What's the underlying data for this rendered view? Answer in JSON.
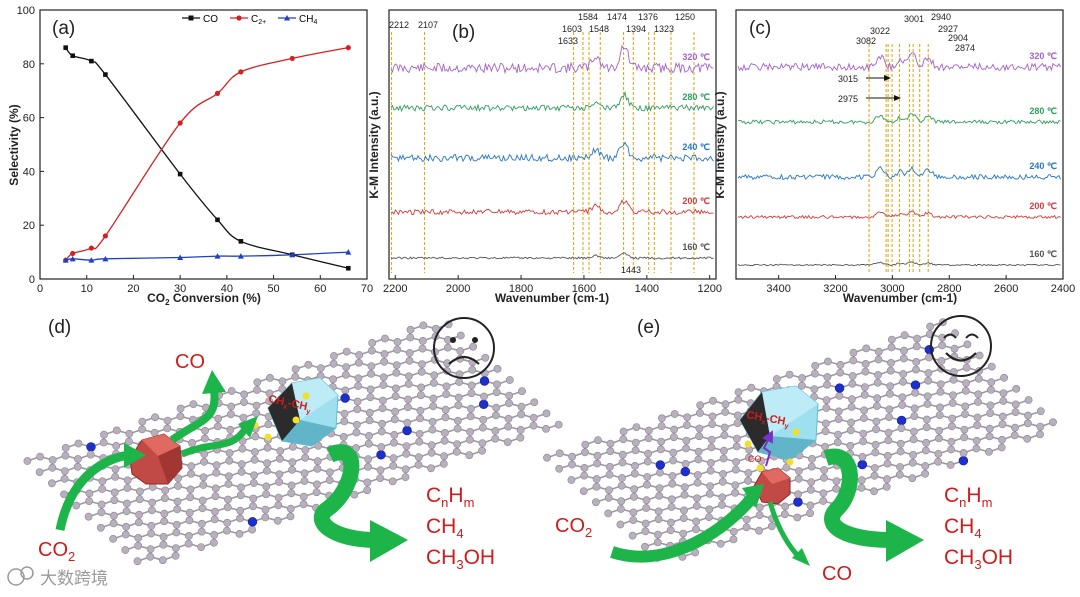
{
  "colors": {
    "co": "#111111",
    "c2": "#d62020",
    "ch4": "#1f3fc7",
    "dash": "#e1a91a",
    "green": "#1db54a",
    "graphene": "#b9b0bd",
    "dopant": "#1f2fcf"
  },
  "chart_data": [
    {
      "panel": "(a)",
      "type": "line",
      "xlabel": "CO2 Conversion (%)",
      "ylabel": "Selectivity (%)",
      "xlim": [
        0,
        70
      ],
      "ylim": [
        0,
        100
      ],
      "xticks": [
        "0",
        "10",
        "20",
        "30",
        "40",
        "50",
        "60",
        "70"
      ],
      "yticks": [
        "0",
        "20",
        "40",
        "60",
        "80",
        "100"
      ],
      "legend_position": "top-right",
      "series": [
        {
          "name": "CO",
          "color": "#111111",
          "x": [
            5.5,
            7,
            11,
            14,
            30,
            38,
            43,
            54,
            66
          ],
          "y": [
            86,
            83,
            81,
            76,
            39,
            22,
            14,
            9,
            4
          ]
        },
        {
          "name": "C2+",
          "color": "#d62020",
          "x": [
            5.5,
            7,
            11,
            14,
            30,
            38,
            43,
            54,
            66
          ],
          "y": [
            7,
            9.5,
            11.5,
            16,
            58,
            69,
            77,
            82,
            86
          ]
        },
        {
          "name": "CH4",
          "color": "#1f3fc7",
          "x": [
            5.5,
            7,
            11,
            14,
            30,
            38,
            43,
            54,
            66
          ],
          "y": [
            7,
            7.5,
            7,
            7.5,
            8,
            8.5,
            8.5,
            9,
            10
          ]
        }
      ]
    },
    {
      "panel": "(b)",
      "type": "line",
      "xlabel": "Wavenumber (cm-1)",
      "ylabel": "K-M Intensity (a.u.)",
      "xlim": [
        2220,
        1180
      ],
      "xticks": [
        "2200",
        "2000",
        "1800",
        "1600",
        "1400",
        "1200"
      ],
      "peak_lines": [
        2212,
        2107,
        1633,
        1603,
        1584,
        1548,
        1474,
        1443,
        1394,
        1376,
        1323,
        1250
      ],
      "peak_labels": [
        "2212",
        "2107",
        "1633",
        "1603",
        "1584",
        "1548",
        "1474",
        "1394",
        "1376",
        "1323",
        "1250",
        "1443"
      ],
      "series": [
        {
          "name": "320 ℃",
          "color": "#a463c9"
        },
        {
          "name": "280 ℃",
          "color": "#2f9e5f"
        },
        {
          "name": "240 ℃",
          "color": "#2877c2"
        },
        {
          "name": "200 ℃",
          "color": "#d23c3c"
        },
        {
          "name": "160 ℃",
          "color": "#555555"
        }
      ]
    },
    {
      "panel": "(c)",
      "type": "line",
      "xlabel": "Wavenumber (cm-1)",
      "ylabel": "K-M Intensity (a.u.)",
      "xlim": [
        3550,
        2400
      ],
      "xticks": [
        "3400",
        "3200",
        "3000",
        "2800",
        "2600",
        "2400"
      ],
      "peak_lines": [
        3082,
        3022,
        3015,
        3001,
        2975,
        2940,
        2927,
        2904,
        2874
      ],
      "peak_labels": [
        "3082",
        "3022",
        "3001",
        "2940",
        "2927",
        "2904",
        "2874",
        "3015",
        "2975"
      ],
      "series": [
        {
          "name": "320 ℃",
          "color": "#a463c9"
        },
        {
          "name": "280 ℃",
          "color": "#2f9e5f"
        },
        {
          "name": "240 ℃",
          "color": "#2877c2"
        },
        {
          "name": "200 ℃",
          "color": "#d23c3c"
        },
        {
          "name": "160 ℃",
          "color": "#555555"
        }
      ]
    }
  ],
  "legend": {
    "co": "CO",
    "c2": "C",
    "c2_sup": "2+",
    "ch4": "CH",
    "ch4_sub": "4"
  },
  "panel_a": {
    "label": "(a)",
    "xlabel_pre": "CO",
    "xlabel_sub": "2",
    "xlabel_post": " Conversion (%)",
    "ylabel": "Selectivity (%)"
  },
  "panel_b": {
    "label": "(b)",
    "xlabel": "Wavenumber (cm-1)",
    "ylabel": "K-M Intensity (a.u.)"
  },
  "panel_c": {
    "label": "(c)",
    "xlabel": "Wavenumber (cm-1)",
    "ylabel": "K-M Intensity (a.u.)"
  },
  "panel_d": {
    "label": "(d)",
    "face": "sad",
    "co": "CO",
    "co2": "CO",
    "co2_sub": "2",
    "inter_pre": "CH",
    "inter_sub": "x",
    "inter_mid": "-CH",
    "inter_sub2": "y",
    "p1_a": "C",
    "p1_b": "n",
    "p1_c": "H",
    "p1_d": "m",
    "p2_a": "CH",
    "p2_b": "4",
    "p3_a": "CH",
    "p3_b": "3",
    "p3_c": "OH"
  },
  "panel_e": {
    "label": "(e)",
    "face": "happy",
    "co": "CO",
    "co_small": "CO",
    "co2": "CO",
    "co2_sub": "2",
    "inter_pre": "CH",
    "inter_sub": "x",
    "inter_mid": "-CH",
    "inter_sub2": "y",
    "p1_a": "C",
    "p1_b": "n",
    "p1_c": "H",
    "p1_d": "m",
    "p2_a": "CH",
    "p2_b": "4",
    "p3_a": "CH",
    "p3_b": "3",
    "p3_c": "OH"
  },
  "watermark": {
    "text": "大数跨境"
  }
}
